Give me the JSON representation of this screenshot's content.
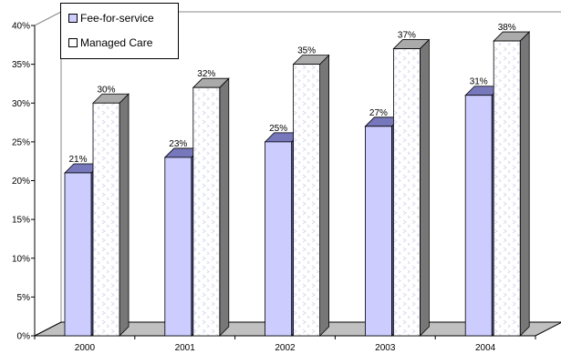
{
  "chart_data": {
    "type": "bar",
    "categories": [
      "2000",
      "2001",
      "2002",
      "2003",
      "2004"
    ],
    "series": [
      {
        "name": "Fee-for-service",
        "values": [
          21,
          23,
          25,
          27,
          31
        ],
        "labels": [
          "21%",
          "23%",
          "25%",
          "27%",
          "31%"
        ],
        "color": "#ccccff"
      },
      {
        "name": "Managed Care",
        "values": [
          30,
          32,
          35,
          37,
          38
        ],
        "labels": [
          "30%",
          "32%",
          "35%",
          "37%",
          "38%"
        ],
        "color": "#ffffff"
      }
    ],
    "ylim": [
      0,
      40
    ],
    "y_ticks": [
      "0%",
      "5%",
      "10%",
      "15%",
      "20%",
      "25%",
      "30%",
      "35%",
      "40%"
    ],
    "legend_position": "top-left",
    "style": "3d-column"
  }
}
